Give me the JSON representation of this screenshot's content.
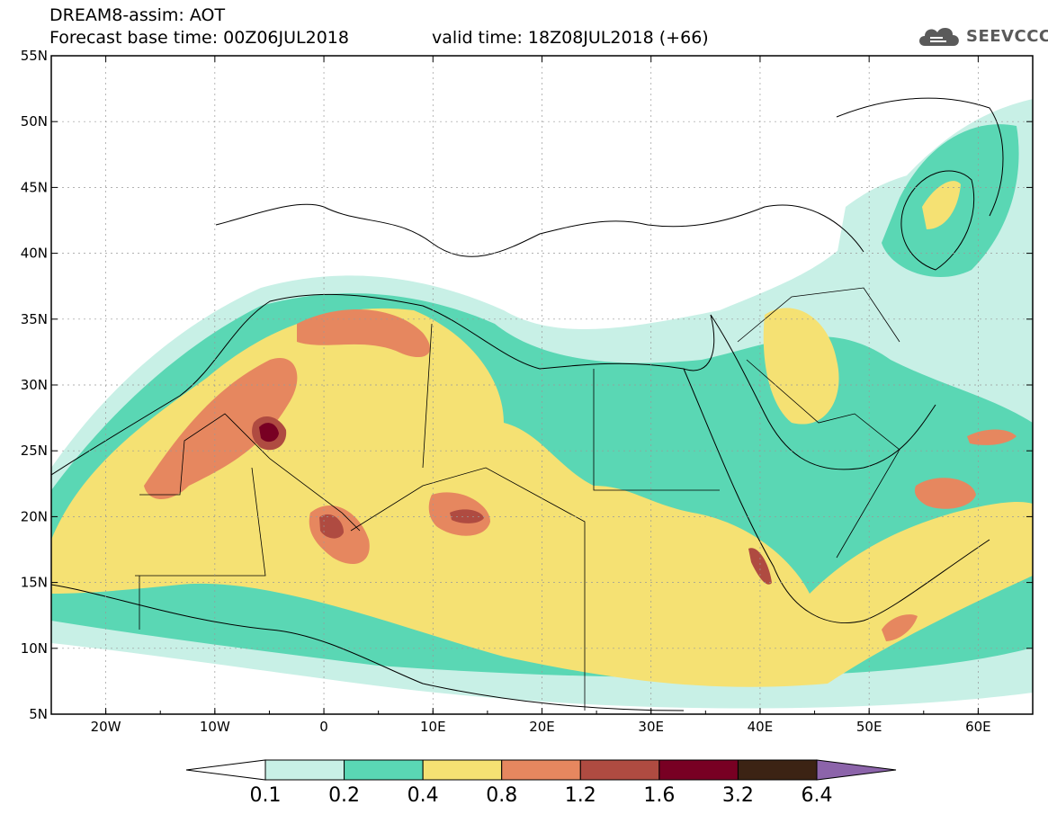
{
  "header": {
    "title_line1": "DREAM8-assim: AOT",
    "title_line2": "Forecast base time: 00Z06JUL2018",
    "valid_time": "valid time: 18Z08JUL2018 (+66)",
    "logo_text": "SEEVCCC",
    "logo_icon": "cloud-icon"
  },
  "map": {
    "lon_range": [
      -25,
      65
    ],
    "lat_range": [
      5,
      55
    ],
    "lon_ticks": [
      {
        "value": -20,
        "label": "20W"
      },
      {
        "value": -10,
        "label": "10W"
      },
      {
        "value": 0,
        "label": "0"
      },
      {
        "value": 10,
        "label": "10E"
      },
      {
        "value": 20,
        "label": "20E"
      },
      {
        "value": 30,
        "label": "30E"
      },
      {
        "value": 40,
        "label": "40E"
      },
      {
        "value": 50,
        "label": "50E"
      },
      {
        "value": 60,
        "label": "60E"
      }
    ],
    "lat_ticks": [
      {
        "value": 55,
        "label": "55N"
      },
      {
        "value": 50,
        "label": "50N"
      },
      {
        "value": 45,
        "label": "45N"
      },
      {
        "value": 40,
        "label": "40N"
      },
      {
        "value": 35,
        "label": "35N"
      },
      {
        "value": 30,
        "label": "30N"
      },
      {
        "value": 25,
        "label": "25N"
      },
      {
        "value": 20,
        "label": "20N"
      },
      {
        "value": 15,
        "label": "15N"
      },
      {
        "value": 10,
        "label": "10N"
      },
      {
        "value": 5,
        "label": "5N"
      }
    ],
    "grid": true
  },
  "colorbar": {
    "levels": [
      "0.1",
      "0.2",
      "0.4",
      "0.8",
      "1.2",
      "1.6",
      "3.2",
      "6.4"
    ],
    "colors": [
      "#ffffff",
      "#c8f0e6",
      "#5ad7b4",
      "#f5e173",
      "#e6875f",
      "#af4b41",
      "#780023",
      "#3c2314",
      "#8c64aa"
    ]
  }
}
